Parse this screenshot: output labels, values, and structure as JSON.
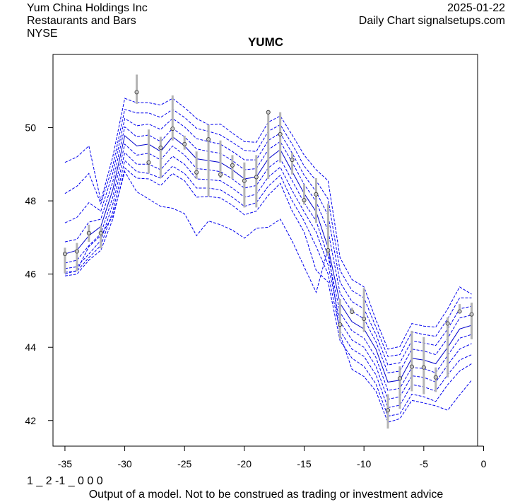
{
  "header": {
    "company": "Yum China Holdings Inc",
    "industry": "Restaurants and Bars",
    "exchange": "NYSE",
    "date": "2025-01-22",
    "source": "Daily Chart signalsetups.com"
  },
  "footer": {
    "code": "1 _ 2 -1 _ 0 0 0",
    "disclaimer": "Output of a model. Not to be construed as trading or investment advice"
  },
  "colors": {
    "band": "#0000ee",
    "center": "#0000cc",
    "bar": "#b4b4b4",
    "point": "#c8c8c8"
  },
  "chart_data": {
    "type": "line",
    "title": "YUMC",
    "xlabel": "",
    "ylabel": "",
    "xlim": [
      -36,
      -0.5
    ],
    "ylim": [
      41.3,
      52.0
    ],
    "x_ticks": [
      -35,
      -30,
      -25,
      -20,
      -15,
      -10,
      -5,
      0
    ],
    "x_tick_labels": [
      "-35",
      "-30",
      "-25",
      "-20",
      "-15",
      "-10",
      "-5",
      "0"
    ],
    "y_ticks": [
      42,
      44,
      46,
      48,
      50
    ],
    "y_tick_labels": [
      "42",
      "44",
      "46",
      "48",
      "50"
    ],
    "x": [
      -35,
      -34,
      -33,
      -32,
      -31,
      -30,
      -29,
      -28,
      -27,
      -26,
      -25,
      -24,
      -23,
      -22,
      -21,
      -20,
      -19,
      -18,
      -17,
      -16,
      -15,
      -14,
      -13,
      -12,
      -11,
      -10,
      -9,
      -8,
      -7,
      -6,
      -5,
      -4,
      -3,
      -2,
      -1
    ],
    "close": [
      46.55,
      46.62,
      47.12,
      47.12,
      null,
      null,
      50.97,
      49.05,
      49.45,
      49.97,
      49.55,
      48.78,
      49.68,
      48.72,
      48.97,
      48.55,
      48.65,
      50.42,
      49.82,
      49.12,
      48.02,
      48.18,
      46.65,
      44.62,
      44.97,
      44.78,
      null,
      42.28,
      43.15,
      43.47,
      43.45,
      43.18,
      44.65,
      44.98,
      44.9
    ],
    "high": [
      46.72,
      46.85,
      47.35,
      47.32,
      null,
      null,
      51.45,
      49.95,
      49.75,
      50.88,
      49.78,
      49.35,
      50.08,
      49.65,
      49.25,
      49.05,
      49.25,
      50.48,
      50.42,
      49.32,
      48.45,
      48.62,
      47.92,
      45.32,
      45.08,
      45.62,
      null,
      42.72,
      43.48,
      44.45,
      44.28,
      43.45,
      44.82,
      45.18,
      45.22
    ],
    "low": [
      46.02,
      46.08,
      46.88,
      46.7,
      null,
      null,
      50.65,
      48.75,
      48.62,
      49.65,
      49.4,
      48.6,
      48.12,
      48.62,
      48.6,
      47.82,
      47.82,
      48.6,
      49.05,
      48.72,
      47.9,
      47.4,
      46.5,
      44.25,
      44.92,
      44.42,
      null,
      41.78,
      42.32,
      42.8,
      42.72,
      42.78,
      43.18,
      44.98,
      44.22
    ],
    "series": [
      {
        "name": "center",
        "values": [
          46.55,
          46.65,
          47.05,
          47.3,
          48.3,
          49.78,
          49.5,
          49.55,
          49.35,
          49.75,
          49.5,
          49.15,
          49.1,
          49.05,
          48.85,
          48.6,
          48.65,
          49.15,
          49.4,
          48.8,
          48.2,
          47.7,
          46.72,
          45.2,
          44.7,
          44.5,
          43.95,
          43.05,
          43.1,
          43.7,
          43.65,
          43.55,
          44.0,
          44.5,
          44.6
        ]
      },
      {
        "name": "upper1",
        "values": [
          46.88,
          46.95,
          47.42,
          47.5,
          48.52,
          50.02,
          49.75,
          49.8,
          49.62,
          49.98,
          49.75,
          49.42,
          49.35,
          49.3,
          49.1,
          48.85,
          48.88,
          49.4,
          49.62,
          49.05,
          48.45,
          47.98,
          47.18,
          45.48,
          44.98,
          44.78,
          44.15,
          43.3,
          43.35,
          43.95,
          43.9,
          43.8,
          44.25,
          44.8,
          44.88
        ]
      },
      {
        "name": "upper2",
        "values": [
          47.4,
          47.55,
          47.95,
          47.72,
          48.75,
          50.25,
          50.05,
          50.1,
          49.95,
          50.25,
          50.02,
          49.7,
          49.62,
          49.55,
          49.35,
          49.12,
          49.12,
          49.65,
          49.85,
          49.3,
          48.7,
          48.25,
          47.6,
          45.78,
          45.25,
          45.05,
          44.35,
          43.52,
          43.58,
          44.18,
          44.12,
          44.05,
          44.5,
          45.05,
          45.12
        ]
      },
      {
        "name": "upper3",
        "values": [
          48.2,
          48.4,
          48.75,
          47.92,
          48.95,
          50.5,
          50.4,
          50.4,
          50.28,
          50.5,
          50.28,
          49.98,
          49.9,
          49.8,
          49.6,
          49.38,
          49.35,
          49.9,
          50.08,
          49.55,
          48.95,
          48.55,
          48.05,
          46.1,
          45.55,
          45.35,
          44.55,
          43.75,
          43.8,
          44.42,
          44.35,
          44.3,
          44.78,
          45.35,
          45.35
        ]
      },
      {
        "name": "upper4",
        "values": [
          49.05,
          49.2,
          49.5,
          48.0,
          49.2,
          50.8,
          50.68,
          50.68,
          50.62,
          50.8,
          50.55,
          50.25,
          50.08,
          50.1,
          49.85,
          49.62,
          49.6,
          50.15,
          50.32,
          49.8,
          49.25,
          48.85,
          48.55,
          46.45,
          45.85,
          45.65,
          44.75,
          43.95,
          44.02,
          44.65,
          44.58,
          44.55,
          45.05,
          45.65,
          45.45
        ]
      },
      {
        "name": "lower1",
        "values": [
          46.3,
          46.38,
          46.78,
          47.1,
          48.1,
          49.55,
          49.25,
          49.3,
          49.12,
          49.5,
          49.25,
          48.88,
          48.85,
          48.8,
          48.6,
          48.35,
          48.42,
          48.9,
          49.15,
          48.55,
          47.95,
          47.45,
          46.48,
          44.95,
          44.45,
          44.25,
          43.72,
          42.82,
          42.88,
          43.45,
          43.42,
          43.3,
          43.78,
          44.25,
          44.35
        ]
      },
      {
        "name": "lower2",
        "values": [
          46.15,
          46.2,
          46.55,
          46.92,
          47.9,
          49.32,
          49.0,
          49.0,
          48.85,
          49.22,
          49.0,
          48.6,
          48.58,
          48.55,
          48.35,
          48.1,
          48.18,
          48.65,
          48.92,
          48.28,
          47.7,
          47.15,
          46.25,
          44.7,
          44.2,
          44.0,
          43.48,
          42.58,
          42.65,
          43.22,
          43.18,
          43.05,
          43.52,
          43.95,
          44.1
        ]
      },
      {
        "name": "lower3",
        "values": [
          46.05,
          46.08,
          46.45,
          46.78,
          47.7,
          49.1,
          48.8,
          48.75,
          48.62,
          48.95,
          48.75,
          48.35,
          48.35,
          48.3,
          48.1,
          47.85,
          47.95,
          48.4,
          48.7,
          48.0,
          47.45,
          46.75,
          46.0,
          44.45,
          43.95,
          43.75,
          43.25,
          42.35,
          42.42,
          42.98,
          42.92,
          42.8,
          43.25,
          43.65,
          43.8
        ]
      },
      {
        "name": "lower4",
        "values": [
          45.95,
          46.0,
          46.38,
          46.65,
          47.5,
          48.9,
          48.62,
          48.6,
          48.42,
          48.75,
          48.55,
          48.1,
          48.12,
          48.08,
          47.88,
          47.62,
          47.72,
          48.15,
          48.48,
          47.72,
          47.15,
          46.1,
          45.78,
          44.18,
          43.7,
          43.48,
          43.0,
          42.12,
          42.18,
          42.72,
          42.65,
          42.52,
          42.98,
          43.35,
          43.55
        ]
      },
      {
        "name": "lower5",
        "values": [
          46.0,
          46.1,
          46.75,
          47.05,
          47.58,
          48.8,
          48.25,
          48.05,
          47.85,
          47.8,
          47.65,
          47.05,
          47.45,
          47.35,
          47.2,
          46.98,
          47.25,
          47.28,
          47.5,
          46.9,
          46.2,
          45.5,
          46.7,
          44.35,
          43.4,
          43.2,
          42.8,
          41.95,
          42.05,
          42.55,
          42.48,
          42.4,
          42.28,
          42.7,
          43.1
        ]
      }
    ]
  }
}
